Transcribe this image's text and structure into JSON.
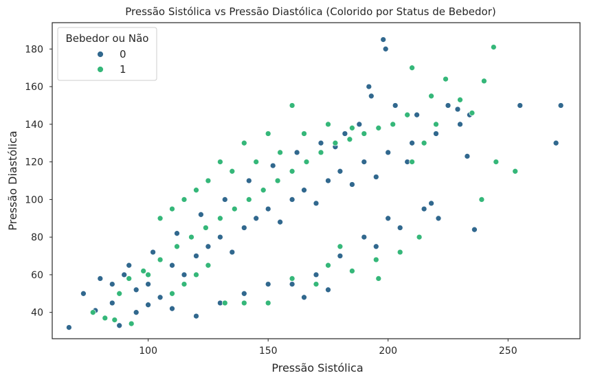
{
  "chart_data": {
    "type": "scatter",
    "title": "Pressão Sistólica vs Pressão Diastólica (Colorido por Status de Bebedor)",
    "xlabel": "Pressão Sistólica",
    "ylabel": "Pressão Diastólica",
    "xlim": [
      60,
      280
    ],
    "ylim": [
      26,
      194
    ],
    "xticks": [
      "100",
      "150",
      "200",
      "250"
    ],
    "yticks": [
      "40",
      "60",
      "80",
      "100",
      "120",
      "140",
      "160",
      "180"
    ],
    "grid": false,
    "legend": {
      "title": "Bebedor ou Não",
      "placement": "top-left",
      "entries": [
        {
          "label": "0",
          "color": "#31688e"
        },
        {
          "label": "1",
          "color": "#35b779"
        }
      ]
    },
    "series": [
      {
        "name": "0",
        "color": "#31688e",
        "points": [
          [
            67,
            32
          ],
          [
            73,
            50
          ],
          [
            78,
            41
          ],
          [
            88,
            33
          ],
          [
            95,
            40
          ],
          [
            85,
            45
          ],
          [
            80,
            58
          ],
          [
            90,
            60
          ],
          [
            100,
            55
          ],
          [
            105,
            48
          ],
          [
            110,
            65
          ],
          [
            120,
            70
          ],
          [
            115,
            60
          ],
          [
            125,
            75
          ],
          [
            130,
            80
          ],
          [
            135,
            72
          ],
          [
            140,
            85
          ],
          [
            145,
            90
          ],
          [
            150,
            95
          ],
          [
            155,
            88
          ],
          [
            160,
            100
          ],
          [
            165,
            105
          ],
          [
            170,
            98
          ],
          [
            175,
            110
          ],
          [
            180,
            115
          ],
          [
            185,
            108
          ],
          [
            190,
            120
          ],
          [
            195,
            112
          ],
          [
            200,
            125
          ],
          [
            210,
            130
          ],
          [
            220,
            135
          ],
          [
            230,
            140
          ],
          [
            198,
            185
          ],
          [
            199,
            180
          ],
          [
            193,
            155
          ],
          [
            192,
            160
          ],
          [
            203,
            150
          ],
          [
            212,
            145
          ],
          [
            225,
            150
          ],
          [
            229,
            148
          ],
          [
            234,
            145
          ],
          [
            255,
            150
          ],
          [
            272,
            150
          ],
          [
            270,
            130
          ],
          [
            236,
            84
          ],
          [
            233,
            123
          ],
          [
            218,
            98
          ],
          [
            221,
            90
          ],
          [
            215,
            95
          ],
          [
            208,
            120
          ],
          [
            160,
            55
          ],
          [
            170,
            60
          ],
          [
            180,
            70
          ],
          [
            190,
            80
          ],
          [
            200,
            90
          ],
          [
            175,
            52
          ],
          [
            185,
            62
          ],
          [
            165,
            48
          ],
          [
            195,
            75
          ],
          [
            205,
            85
          ],
          [
            120,
            38
          ],
          [
            130,
            45
          ],
          [
            140,
            50
          ],
          [
            150,
            55
          ],
          [
            110,
            42
          ],
          [
            100,
            44
          ],
          [
            95,
            52
          ],
          [
            85,
            55
          ],
          [
            92,
            65
          ],
          [
            102,
            72
          ],
          [
            112,
            82
          ],
          [
            122,
            92
          ],
          [
            132,
            100
          ],
          [
            142,
            110
          ],
          [
            152,
            118
          ],
          [
            162,
            125
          ],
          [
            172,
            130
          ],
          [
            182,
            135
          ],
          [
            188,
            140
          ],
          [
            178,
            128
          ]
        ]
      },
      {
        "name": "1",
        "color": "#35b779",
        "points": [
          [
            77,
            40
          ],
          [
            82,
            37
          ],
          [
            86,
            36
          ],
          [
            93,
            34
          ],
          [
            88,
            50
          ],
          [
            92,
            58
          ],
          [
            98,
            62
          ],
          [
            105,
            68
          ],
          [
            112,
            75
          ],
          [
            118,
            80
          ],
          [
            124,
            85
          ],
          [
            130,
            90
          ],
          [
            136,
            95
          ],
          [
            142,
            100
          ],
          [
            148,
            105
          ],
          [
            154,
            110
          ],
          [
            160,
            115
          ],
          [
            166,
            120
          ],
          [
            172,
            125
          ],
          [
            178,
            130
          ],
          [
            184,
            132
          ],
          [
            190,
            135
          ],
          [
            196,
            138
          ],
          [
            202,
            140
          ],
          [
            208,
            145
          ],
          [
            244,
            181
          ],
          [
            210,
            170
          ],
          [
            224,
            164
          ],
          [
            240,
            163
          ],
          [
            218,
            155
          ],
          [
            230,
            153
          ],
          [
            235,
            146
          ],
          [
            245,
            120
          ],
          [
            253,
            115
          ],
          [
            239,
            100
          ],
          [
            213,
            80
          ],
          [
            196,
            58
          ],
          [
            210,
            120
          ],
          [
            220,
            140
          ],
          [
            215,
            130
          ],
          [
            140,
            45
          ],
          [
            132,
            45
          ],
          [
            150,
            45
          ],
          [
            170,
            55
          ],
          [
            185,
            62
          ],
          [
            195,
            68
          ],
          [
            205,
            72
          ],
          [
            175,
            65
          ],
          [
            160,
            58
          ],
          [
            180,
            75
          ],
          [
            110,
            50
          ],
          [
            115,
            55
          ],
          [
            120,
            60
          ],
          [
            125,
            65
          ],
          [
            100,
            60
          ],
          [
            105,
            90
          ],
          [
            115,
            100
          ],
          [
            125,
            110
          ],
          [
            135,
            115
          ],
          [
            145,
            120
          ],
          [
            155,
            125
          ],
          [
            165,
            135
          ],
          [
            175,
            140
          ],
          [
            185,
            138
          ],
          [
            160,
            150
          ],
          [
            150,
            135
          ],
          [
            140,
            130
          ],
          [
            130,
            120
          ],
          [
            120,
            105
          ],
          [
            110,
            95
          ]
        ]
      }
    ]
  }
}
